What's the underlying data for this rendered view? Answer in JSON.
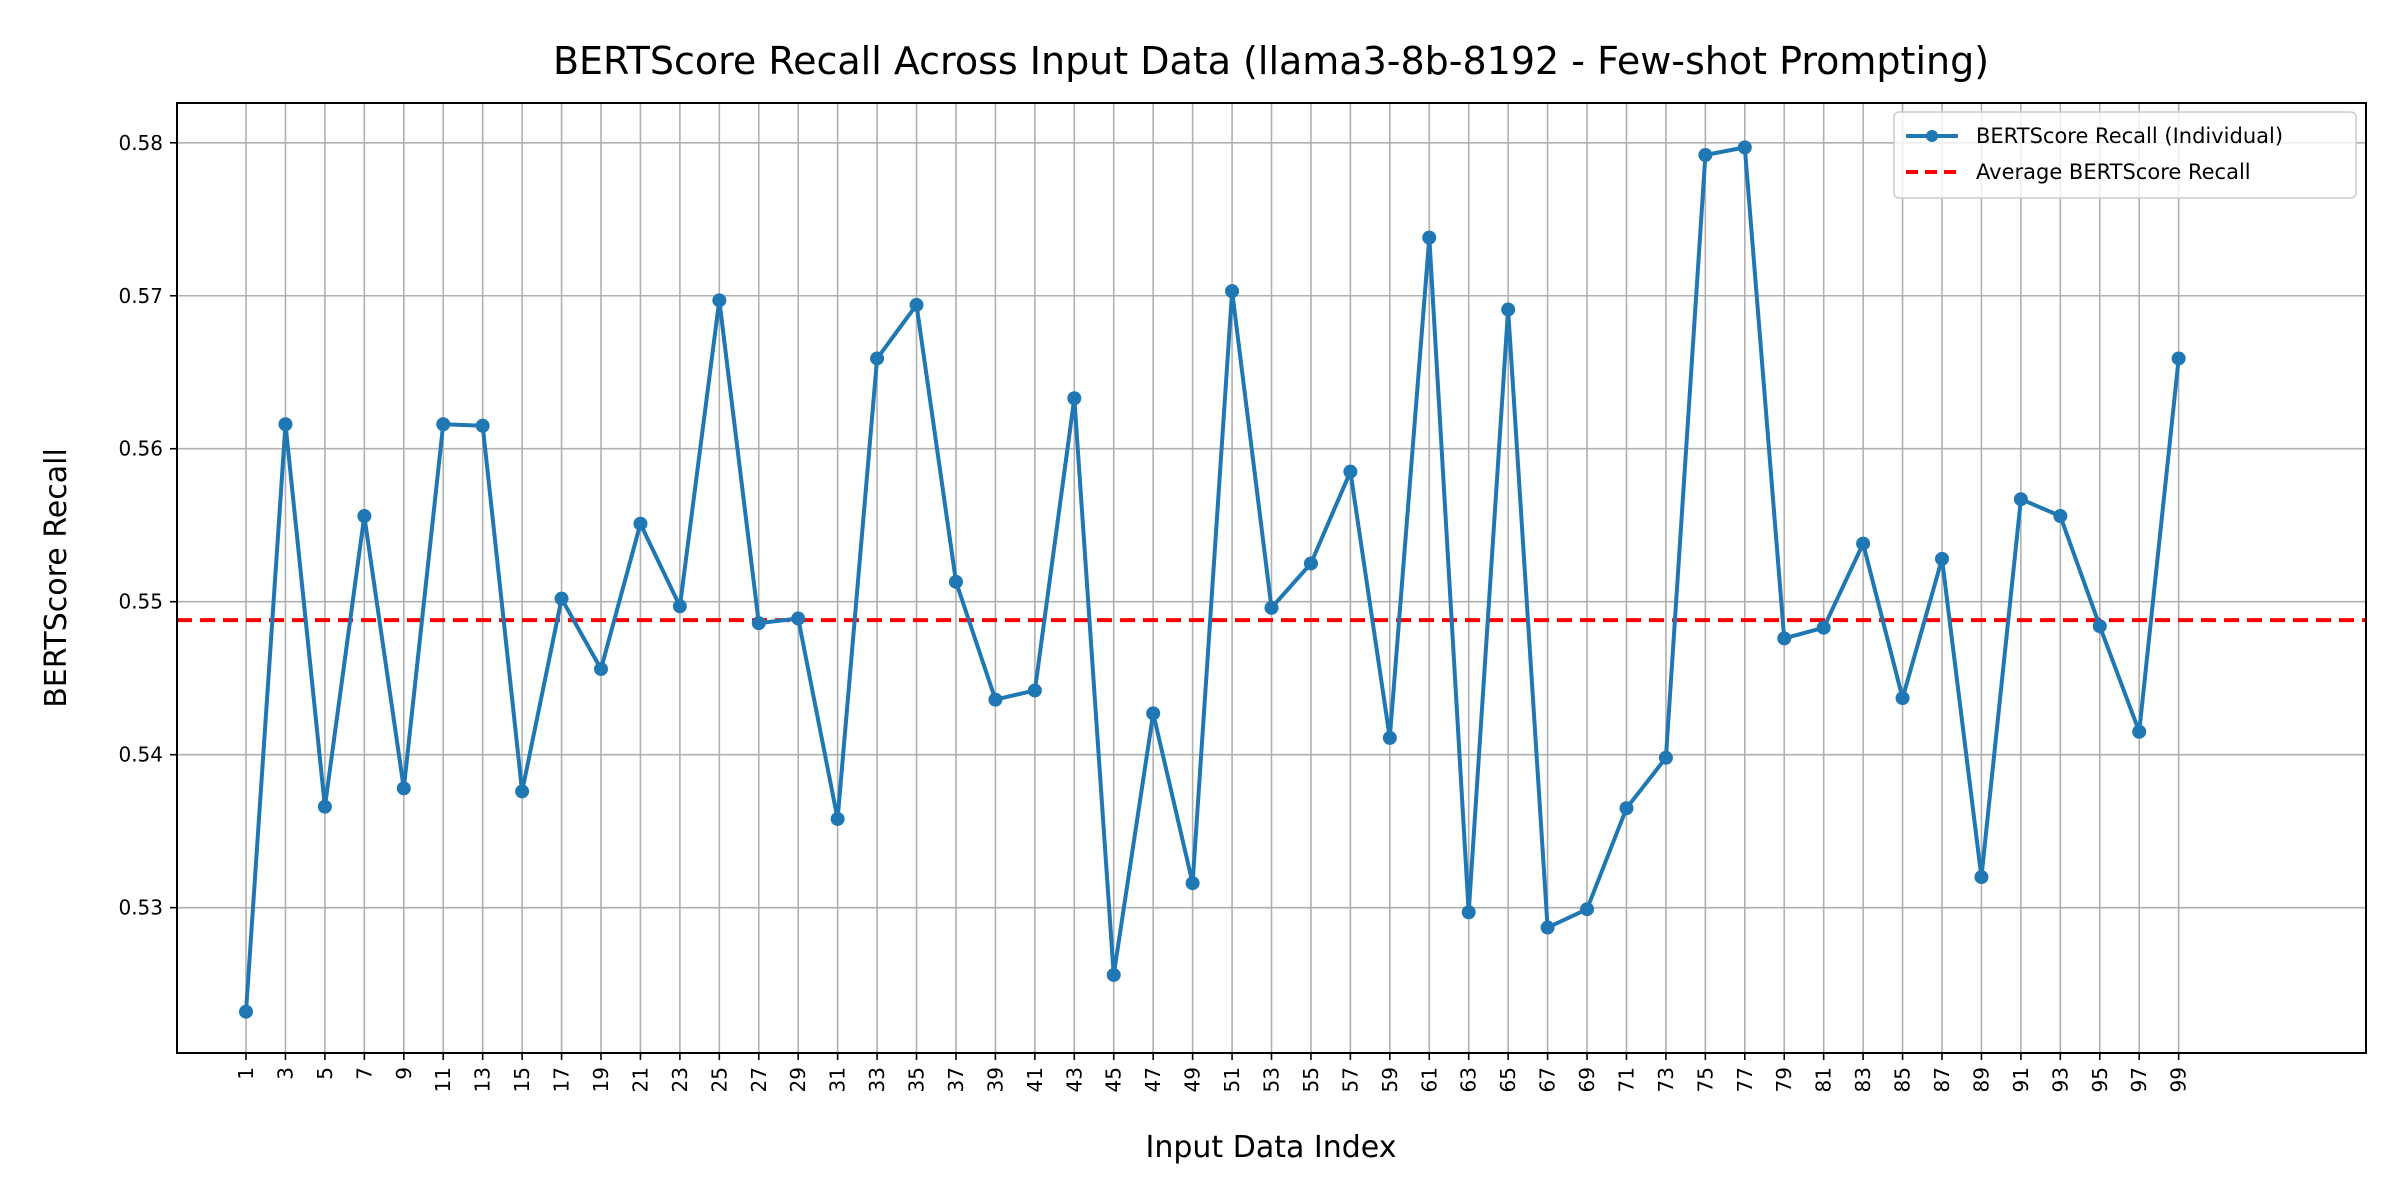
{
  "chart_data": {
    "type": "line",
    "title": "BERTScore Recall Across Input Data (llama3-8b-8192 - Few-shot Prompting)",
    "xlabel": "Input Data Index",
    "ylabel": "BERTScore Recall",
    "xlim": [
      -2.5,
      108.5
    ],
    "ylim": [
      0.5205,
      0.5826
    ],
    "grid": true,
    "legend_position": "top-right",
    "x_ticks": [
      1,
      3,
      5,
      7,
      9,
      11,
      13,
      15,
      17,
      19,
      21,
      23,
      25,
      27,
      29,
      31,
      33,
      35,
      37,
      39,
      41,
      43,
      45,
      47,
      49,
      51,
      53,
      55,
      57,
      59,
      61,
      63,
      65,
      67,
      69,
      71,
      73,
      75,
      77,
      79,
      81,
      83,
      85,
      87,
      89,
      91,
      93,
      95,
      97,
      99
    ],
    "x_tick_labels": [
      "1",
      "3",
      "5",
      "7",
      "9",
      "11",
      "13",
      "15",
      "17",
      "19",
      "21",
      "23",
      "25",
      "27",
      "29",
      "31",
      "33",
      "35",
      "37",
      "39",
      "41",
      "43",
      "45",
      "47",
      "49",
      "51",
      "53",
      "55",
      "57",
      "59",
      "61",
      "63",
      "65",
      "67",
      "69",
      "71",
      "73",
      "75",
      "77",
      "79",
      "81",
      "83",
      "85",
      "87",
      "89",
      "91",
      "93",
      "95",
      "97",
      "99"
    ],
    "y_ticks": [
      0.53,
      0.54,
      0.55,
      0.56,
      0.57,
      0.58
    ],
    "y_tick_labels": [
      "0.53",
      "0.54",
      "0.55",
      "0.56",
      "0.57",
      "0.58"
    ],
    "series": [
      {
        "name": "BERTScore Recall (Individual)",
        "color": "#1f77b4",
        "style": "line-with-markers",
        "x": [
          1,
          3,
          5,
          7,
          9,
          11,
          13,
          15,
          17,
          19,
          21,
          23,
          25,
          27,
          29,
          31,
          33,
          35,
          37,
          39,
          41,
          43,
          45,
          47,
          49,
          51,
          53,
          55,
          57,
          59,
          61,
          63,
          65,
          67,
          69,
          71,
          73,
          75,
          77,
          79,
          81,
          83,
          85,
          87,
          89,
          91,
          93,
          95,
          97,
          99
        ],
        "values": [
          0.5232,
          0.5616,
          0.5366,
          0.5556,
          0.5378,
          0.5616,
          0.5615,
          0.5376,
          0.5502,
          0.5456,
          0.5551,
          0.5497,
          0.5697,
          0.5486,
          0.5489,
          0.5358,
          0.5659,
          0.5694,
          0.5513,
          0.5436,
          0.5442,
          0.5633,
          0.5256,
          0.5427,
          0.5316,
          0.5703,
          0.5496,
          0.5525,
          0.5585,
          0.5411,
          0.5738,
          0.5297,
          0.5691,
          0.5287,
          0.5299,
          0.5365,
          0.5398,
          0.5792,
          0.5797,
          0.5476,
          0.5483,
          0.5538,
          0.5437,
          0.5528,
          0.532,
          0.5567,
          0.5556,
          0.5484,
          0.5415,
          0.5659
        ]
      },
      {
        "name": "Average BERTScore Recall",
        "color": "#ff0000",
        "style": "dashed-horizontal",
        "value": 0.5488
      }
    ]
  }
}
